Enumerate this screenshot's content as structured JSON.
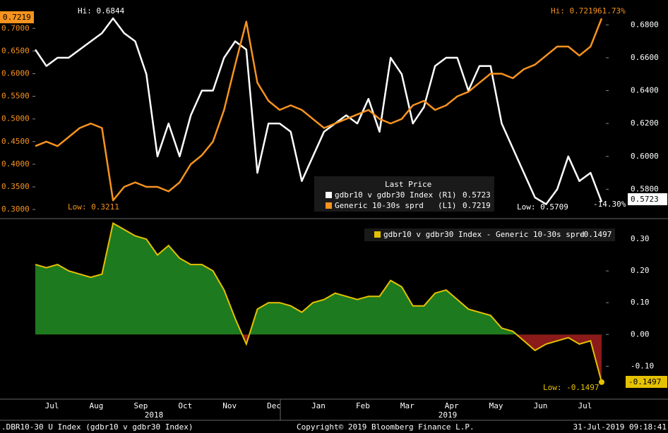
{
  "chart_data": [
    {
      "type": "line",
      "months": [
        "Jul",
        "Aug",
        "Sep",
        "Oct",
        "Nov",
        "Dec",
        "Jan",
        "Feb",
        "Mar",
        "Apr",
        "May",
        "Jun",
        "Jul"
      ],
      "years": [
        "2018",
        "2019"
      ],
      "ylim": [
        0.283,
        0.755
      ],
      "yticks": [
        {
          "value": 0.3,
          "label": "0.3000"
        },
        {
          "value": 0.35,
          "label": "0.3500"
        },
        {
          "value": 0.4,
          "label": "0.4000"
        },
        {
          "value": 0.45,
          "label": "0.4500"
        },
        {
          "value": 0.5,
          "label": "0.5000"
        },
        {
          "value": 0.55,
          "label": "0.5500"
        },
        {
          "value": 0.6,
          "label": "0.6000"
        },
        {
          "value": 0.65,
          "label": "0.6500"
        },
        {
          "value": 0.7,
          "label": "0.7000"
        }
      ],
      "y2lim": [
        0.563,
        0.693
      ],
      "y2ticks": [
        {
          "value": 0.58,
          "label": "0.5800"
        },
        {
          "value": 0.6,
          "label": "0.6000"
        },
        {
          "value": 0.62,
          "label": "0.6200"
        },
        {
          "value": 0.64,
          "label": "0.6400"
        },
        {
          "value": 0.66,
          "label": "0.6600"
        },
        {
          "value": 0.68,
          "label": "0.6800"
        }
      ],
      "legend_title": "Last Price",
      "series": [
        {
          "name": "gdbr10 v gdbr30 Index",
          "axis_label": "(R1)",
          "axis": "y2",
          "color": "#ffffff",
          "last": 0.5723,
          "values": [
            0.665,
            0.655,
            0.66,
            0.66,
            0.665,
            0.67,
            0.675,
            0.684,
            0.675,
            0.67,
            0.65,
            0.6,
            0.62,
            0.6,
            0.625,
            0.64,
            0.64,
            0.66,
            0.67,
            0.665,
            0.59,
            0.62,
            0.62,
            0.615,
            0.585,
            0.6,
            0.615,
            0.62,
            0.625,
            0.62,
            0.635,
            0.615,
            0.66,
            0.65,
            0.62,
            0.63,
            0.655,
            0.66,
            0.66,
            0.64,
            0.655,
            0.655,
            0.62,
            0.605,
            0.59,
            0.575,
            0.5709,
            0.58,
            0.6,
            0.585,
            0.59,
            0.5723
          ]
        },
        {
          "name": "Generic 10-30s sprd",
          "axis_label": "(L1)",
          "axis": "y",
          "color": "#f7931e",
          "last": 0.7219,
          "values": [
            0.44,
            0.45,
            0.44,
            0.46,
            0.48,
            0.49,
            0.48,
            0.32,
            0.35,
            0.36,
            0.35,
            0.35,
            0.34,
            0.36,
            0.4,
            0.42,
            0.45,
            0.52,
            0.62,
            0.715,
            0.58,
            0.54,
            0.52,
            0.53,
            0.52,
            0.5,
            0.48,
            0.49,
            0.5,
            0.51,
            0.52,
            0.5,
            0.49,
            0.5,
            0.53,
            0.54,
            0.52,
            0.53,
            0.55,
            0.56,
            0.58,
            0.6,
            0.6,
            0.59,
            0.61,
            0.62,
            0.64,
            0.66,
            0.66,
            0.64,
            0.66,
            0.7219
          ]
        }
      ],
      "annotations": [
        "Hi: 0.6844",
        "Low: 0.3211",
        "Hi: 0.7219",
        "61.73%",
        "Low: 0.5709",
        "-14.30%"
      ]
    },
    {
      "type": "area",
      "ylim": [
        -0.19,
        0.36
      ],
      "yticks": [
        {
          "value": 0.3,
          "label": "0.30"
        },
        {
          "value": 0.2,
          "label": "0.20"
        },
        {
          "value": 0.1,
          "label": "0.10"
        },
        {
          "value": 0,
          "label": "0.00"
        },
        {
          "value": -0.1,
          "label": "-0.10"
        }
      ],
      "series": [
        {
          "name": "gdbr10 v gdbr30 Index - Generic 10-30s sprd",
          "color": "#e5c200",
          "fill_pos": "#1e7a1e",
          "fill_neg": "#8b1a1a",
          "last": -0.1497,
          "values": [
            0.22,
            0.21,
            0.22,
            0.2,
            0.19,
            0.18,
            0.19,
            0.35,
            0.33,
            0.31,
            0.3,
            0.25,
            0.28,
            0.24,
            0.22,
            0.22,
            0.2,
            0.14,
            0.05,
            -0.03,
            0.08,
            0.1,
            0.1,
            0.09,
            0.07,
            0.1,
            0.11,
            0.13,
            0.12,
            0.11,
            0.12,
            0.12,
            0.17,
            0.15,
            0.09,
            0.09,
            0.13,
            0.14,
            0.11,
            0.08,
            0.07,
            0.06,
            0.02,
            0.01,
            -0.02,
            -0.05,
            -0.03,
            -0.02,
            -0.01,
            -0.03,
            -0.02,
            -0.1497
          ]
        }
      ],
      "annotations": [
        "Low: -0.1497"
      ]
    }
  ],
  "footer": {
    "left": ".DBR10-30 U Index (gdbr10 v gdbr30 Index)",
    "center": "Copyright© 2019 Bloomberg Finance L.P.",
    "right": "31-Jul-2019 09:18:41"
  }
}
